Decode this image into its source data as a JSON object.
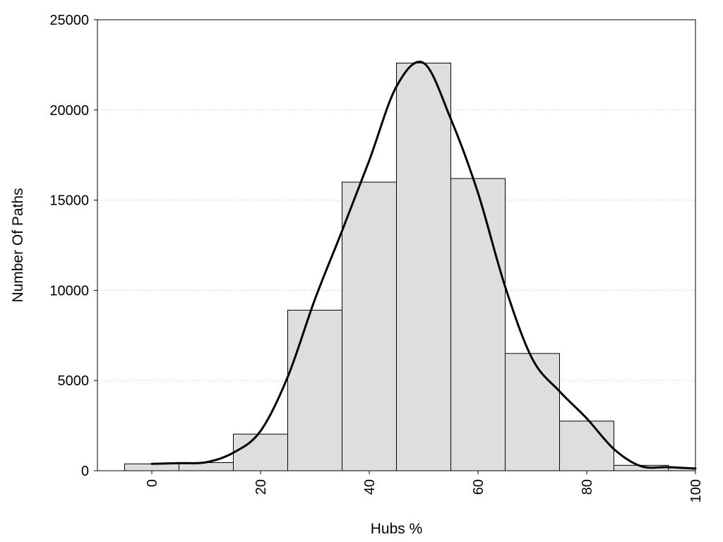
{
  "chart_data": {
    "type": "bar",
    "subtype": "histogram-with-density-curve",
    "title": "",
    "xlabel": "Hubs %",
    "ylabel": "Number Of Paths",
    "xlim": [
      -10,
      100
    ],
    "ylim": [
      0,
      25000
    ],
    "x_ticks": [
      0,
      20,
      40,
      60,
      80,
      100
    ],
    "y_ticks": [
      0,
      5000,
      10000,
      15000,
      20000,
      25000
    ],
    "x_tick_rotation": "vertical",
    "grid": "horizontal dotted",
    "bar_color": "#dedede",
    "bar_edge_color": "#000000",
    "bins": [
      {
        "x0": -5,
        "x1": 5,
        "value": 380
      },
      {
        "x0": 5,
        "x1": 15,
        "value": 450
      },
      {
        "x0": 15,
        "x1": 25,
        "value": 2030
      },
      {
        "x0": 25,
        "x1": 35,
        "value": 8900
      },
      {
        "x0": 35,
        "x1": 45,
        "value": 16000
      },
      {
        "x0": 45,
        "x1": 55,
        "value": 22600
      },
      {
        "x0": 55,
        "x1": 65,
        "value": 16200
      },
      {
        "x0": 65,
        "x1": 75,
        "value": 6500
      },
      {
        "x0": 75,
        "x1": 85,
        "value": 2750
      },
      {
        "x0": 85,
        "x1": 95,
        "value": 300
      },
      {
        "x0": 95,
        "x1": 100,
        "value": 150
      }
    ],
    "curve": {
      "color": "#000000",
      "x": [
        0,
        5,
        10,
        15,
        20,
        25,
        30,
        35,
        40,
        45,
        50,
        55,
        60,
        65,
        70,
        75,
        80,
        85,
        90,
        95,
        100
      ],
      "y": [
        380,
        420,
        470,
        1000,
        2200,
        5200,
        9500,
        13300,
        17200,
        21300,
        22600,
        19500,
        15400,
        10200,
        6200,
        4400,
        2900,
        1200,
        250,
        200,
        120
      ]
    }
  }
}
